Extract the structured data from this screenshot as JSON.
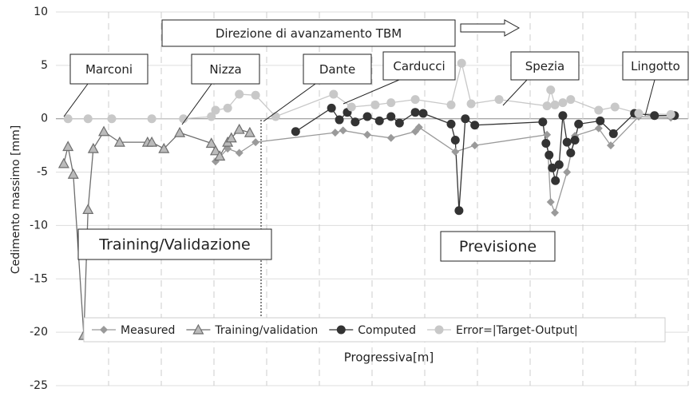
{
  "chart_data": {
    "type": "line",
    "y_label": "Cedimento massimo [mm]",
    "x_label": "Progressiva[m]",
    "ylim": [
      -25,
      10
    ],
    "yticks": [
      -25,
      -20,
      -15,
      -10,
      -5,
      0,
      5,
      10
    ],
    "xlim": [
      0,
      12
    ],
    "xticks": [
      1,
      2,
      3,
      4,
      5,
      6,
      7,
      8,
      9,
      10,
      11,
      12
    ],
    "grid": true,
    "annotations": [
      "Direzione di avanzamento TBM",
      "Marconi",
      "Nizza",
      "Dante",
      "Carducci",
      "Spezia",
      "Lingotto",
      "Training/Validazione",
      "Previsione"
    ],
    "series": [
      {
        "name": "Measured",
        "color": "#9a9a9a",
        "marker": "diamond",
        "x": [
          3.03,
          3.26,
          3.48,
          3.79,
          5.3,
          5.45,
          5.91,
          6.36,
          6.82,
          6.89,
          7.58,
          7.95,
          9.32,
          9.39,
          9.47,
          9.7,
          9.85,
          10.3,
          10.53,
          11.06,
          11.67
        ],
        "values": [
          -4.0,
          -2.8,
          -3.2,
          -2.2,
          -1.3,
          -1.1,
          -1.5,
          -1.8,
          -1.2,
          -0.8,
          -3.1,
          -2.5,
          -1.5,
          -7.8,
          -8.8,
          -5.0,
          -1.6,
          -0.9,
          -2.5,
          0.2,
          0.1
        ]
      },
      {
        "name": "Training/validation",
        "color": "#6e6e6e",
        "marker": "triangle",
        "x": [
          0.15,
          0.23,
          0.33,
          0.53,
          0.61,
          0.71,
          0.91,
          1.21,
          1.74,
          1.82,
          2.05,
          2.35,
          2.95,
          3.03,
          3.11,
          3.26,
          3.33,
          3.48,
          3.68
        ],
        "values": [
          -4.2,
          -2.6,
          -5.2,
          -20.3,
          -8.5,
          -2.8,
          -1.2,
          -2.2,
          -2.2,
          -2.2,
          -2.8,
          -1.3,
          -2.3,
          -3.0,
          -3.5,
          -2.2,
          -1.8,
          -1.0,
          -1.3
        ]
      },
      {
        "name": "Computed",
        "color": "#333333",
        "marker": "circle",
        "x": [
          4.55,
          5.23,
          5.38,
          5.53,
          5.68,
          5.91,
          6.14,
          6.36,
          6.52,
          6.82,
          6.97,
          7.5,
          7.58,
          7.65,
          7.77,
          7.95,
          9.24,
          9.3,
          9.36,
          9.42,
          9.48,
          9.55,
          9.62,
          9.7,
          9.77,
          9.85,
          9.92,
          10.33,
          10.58,
          10.98,
          11.36,
          11.74
        ],
        "values": [
          -1.2,
          1.0,
          -0.1,
          0.6,
          -0.3,
          0.2,
          -0.2,
          0.2,
          -0.4,
          0.6,
          0.5,
          -0.5,
          -2.0,
          -8.6,
          0.0,
          -0.6,
          -0.3,
          -2.3,
          -3.4,
          -4.6,
          -5.8,
          -4.3,
          0.3,
          -2.2,
          -3.2,
          -2.0,
          -0.5,
          -0.2,
          -1.4,
          0.5,
          0.3,
          0.3
        ]
      },
      {
        "name": "Error=|Target-Output|",
        "color": "#c8c8c8",
        "marker": "circle",
        "x": [
          0.23,
          0.61,
          1.06,
          1.82,
          2.42,
          2.95,
          3.03,
          3.26,
          3.48,
          3.79,
          4.17,
          5.27,
          5.61,
          6.06,
          6.36,
          6.82,
          7.5,
          7.7,
          7.88,
          8.41,
          9.32,
          9.39,
          9.47,
          9.62,
          9.77,
          10.3,
          10.61,
          11.06,
          11.67
        ],
        "values": [
          0.0,
          0.0,
          0.0,
          0.0,
          0.0,
          0.2,
          0.8,
          1.0,
          2.3,
          2.2,
          0.2,
          2.3,
          1.1,
          1.3,
          1.5,
          1.8,
          1.3,
          5.2,
          1.4,
          1.8,
          1.2,
          2.7,
          1.3,
          1.5,
          1.8,
          0.8,
          1.1,
          0.5,
          0.4
        ]
      }
    ]
  }
}
